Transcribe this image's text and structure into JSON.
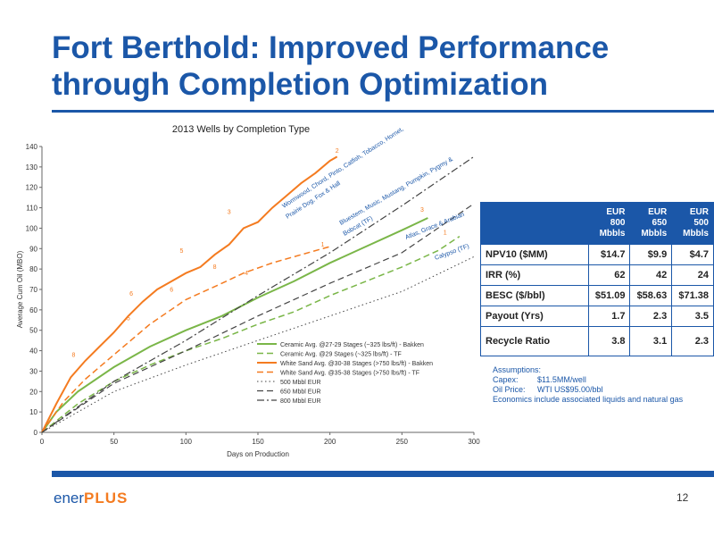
{
  "slide": {
    "title_line1": "Fort Berthold:  Improved Performance",
    "title_line2": "through  Completion Optimization",
    "page_number": "12",
    "logo_part1": "ener",
    "logo_part2": "PLUS"
  },
  "table": {
    "headers": [
      "EUR 800 Mbbls",
      "EUR 650 Mbbls",
      "EUR 500 Mbbls"
    ],
    "rows": [
      {
        "label": "NPV10 ($MM)",
        "values": [
          "$14.7",
          "$9.9",
          "$4.7"
        ]
      },
      {
        "label": "IRR (%)",
        "values": [
          "62",
          "42",
          "24"
        ]
      },
      {
        "label": "BESC ($/bbl)",
        "values": [
          "$51.09",
          "$58.63",
          "$71.38"
        ]
      },
      {
        "label": "Payout (Yrs)",
        "values": [
          "1.7",
          "2.3",
          "3.5"
        ]
      },
      {
        "label": "Recycle Ratio",
        "values": [
          "3.8",
          "3.1",
          "2.3"
        ]
      }
    ]
  },
  "assumptions": {
    "heading": "Assumptions:",
    "capex_label": "Capex:",
    "capex_value": "$11.5MM/well",
    "oil_label": "Oil Price:",
    "oil_value": "WTI US$95.00/bbl",
    "note": "Economics include associated liquids and natural gas"
  },
  "colors": {
    "brand_blue": "#1b57a8",
    "orange": "#f47b20",
    "green": "#7ab648",
    "grey": "#444444"
  },
  "chart_data": {
    "type": "line",
    "title": "2013 Wells by Completion Type",
    "xlabel": "Days on Production",
    "ylabel": "Average Cum Oil (MBO)",
    "xlim": [
      0,
      300
    ],
    "ylim": [
      0,
      140
    ],
    "x_ticks": [
      0,
      50,
      100,
      150,
      200,
      250,
      300
    ],
    "y_ticks": [
      0,
      10,
      20,
      30,
      40,
      50,
      60,
      70,
      80,
      90,
      100,
      110,
      120,
      130,
      140
    ],
    "series": [
      {
        "name": "Ceramic Avg. @27-29 Stages (~325 lbs/ft) - Bakken",
        "style": "solid-green",
        "points": [
          [
            0,
            0
          ],
          [
            10,
            10
          ],
          [
            25,
            20
          ],
          [
            50,
            32
          ],
          [
            75,
            42
          ],
          [
            100,
            50
          ],
          [
            125,
            57
          ],
          [
            150,
            66
          ],
          [
            175,
            74
          ],
          [
            200,
            83
          ],
          [
            225,
            91
          ],
          [
            250,
            99
          ],
          [
            268,
            105
          ]
        ]
      },
      {
        "name": "Ceramic Avg. @29 Stages (~325 lbs/ft) - TF",
        "style": "dash-green",
        "points": [
          [
            0,
            0
          ],
          [
            25,
            14
          ],
          [
            50,
            25
          ],
          [
            75,
            33
          ],
          [
            100,
            40
          ],
          [
            125,
            46
          ],
          [
            150,
            53
          ],
          [
            175,
            59
          ],
          [
            200,
            67
          ],
          [
            225,
            74
          ],
          [
            250,
            81
          ],
          [
            275,
            89
          ],
          [
            290,
            96
          ]
        ]
      },
      {
        "name": "White Sand Avg. @30-38 Stages (>750 lbs/ft) - Bakken",
        "style": "solid-orange",
        "points": [
          [
            0,
            0
          ],
          [
            10,
            14
          ],
          [
            20,
            27
          ],
          [
            30,
            35
          ],
          [
            40,
            42
          ],
          [
            50,
            49
          ],
          [
            60,
            57
          ],
          [
            70,
            64
          ],
          [
            80,
            70
          ],
          [
            90,
            74
          ],
          [
            100,
            78
          ],
          [
            110,
            81
          ],
          [
            120,
            87
          ],
          [
            130,
            92
          ],
          [
            140,
            100
          ],
          [
            150,
            103
          ],
          [
            160,
            110
          ],
          [
            170,
            116
          ],
          [
            180,
            122
          ],
          [
            190,
            127
          ],
          [
            200,
            133
          ],
          [
            205,
            135
          ]
        ]
      },
      {
        "name": "White Sand Avg. @35-38 Stages (>750 lbs/ft) - TF",
        "style": "dash-orange",
        "points": [
          [
            0,
            0
          ],
          [
            15,
            15
          ],
          [
            30,
            26
          ],
          [
            50,
            38
          ],
          [
            75,
            53
          ],
          [
            100,
            65
          ],
          [
            125,
            73
          ],
          [
            140,
            78
          ],
          [
            160,
            83
          ],
          [
            180,
            87
          ],
          [
            200,
            91
          ]
        ]
      },
      {
        "name": "500 Mbbl EUR",
        "style": "dot-grey",
        "points": [
          [
            0,
            0
          ],
          [
            50,
            20
          ],
          [
            100,
            33
          ],
          [
            150,
            45
          ],
          [
            200,
            57
          ],
          [
            250,
            69
          ],
          [
            300,
            86
          ]
        ]
      },
      {
        "name": "650 Mbbl EUR",
        "style": "dash-grey",
        "points": [
          [
            0,
            0
          ],
          [
            50,
            24
          ],
          [
            100,
            40
          ],
          [
            150,
            57
          ],
          [
            200,
            73
          ],
          [
            250,
            88
          ],
          [
            300,
            112
          ]
        ]
      },
      {
        "name": "800 Mbbl EUR",
        "style": "dashdot-grey",
        "points": [
          [
            0,
            0
          ],
          [
            50,
            25
          ],
          [
            100,
            45
          ],
          [
            150,
            67
          ],
          [
            200,
            88
          ],
          [
            250,
            111
          ],
          [
            300,
            135
          ]
        ]
      }
    ],
    "annotations": [
      {
        "text": "Wormwood, Chord, Pinto, Catfish, Tobacco, Hornet, Prairie Dog, Fox & Hall",
        "color": "blue"
      },
      {
        "text": "Bluestem, Music, Mustang, Pumpkin, Pygmy & Bobcat (TF)",
        "color": "blue"
      },
      {
        "text": "Atlas, Grace & Arabian",
        "color": "blue"
      },
      {
        "text": "Calypso (TF)",
        "color": "blue"
      }
    ],
    "well_count_labels": [
      {
        "text": "2",
        "x": 205,
        "y": 137
      },
      {
        "text": "3",
        "x": 130,
        "y": 107
      },
      {
        "text": "5",
        "x": 97,
        "y": 88
      },
      {
        "text": "6",
        "x": 62,
        "y": 67
      },
      {
        "text": "8",
        "x": 22,
        "y": 37
      },
      {
        "text": "5",
        "x": 60,
        "y": 55
      },
      {
        "text": "6",
        "x": 90,
        "y": 69
      },
      {
        "text": "8",
        "x": 120,
        "y": 80
      },
      {
        "text": "1",
        "x": 195,
        "y": 91
      },
      {
        "text": "4",
        "x": 142,
        "y": 77
      },
      {
        "text": "3",
        "x": 264,
        "y": 108
      },
      {
        "text": "1",
        "x": 280,
        "y": 97
      }
    ],
    "legend_position": "bottom-center",
    "grid": false
  }
}
